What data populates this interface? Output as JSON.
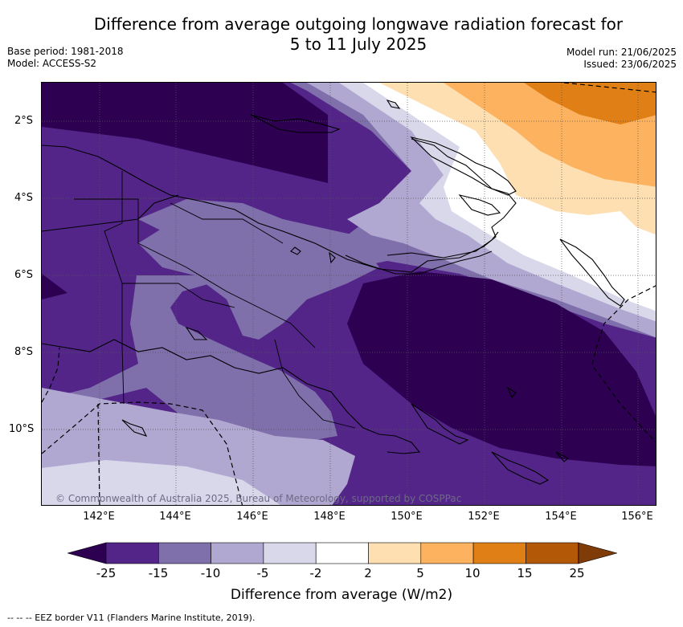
{
  "title_line1": "Difference from average outgoing longwave radiation forecast for",
  "title_line2": "5 to 11 July 2025",
  "base_period": "Base period: 1981-2018",
  "model": "Model: ACCESS-S2",
  "model_run": "Model run: 21/06/2025",
  "issued": "Issued: 23/06/2025",
  "copyright": "© Commonwealth of Australia 2025, Bureau of Meteorology, supported by COSPPac",
  "lat_labels": [
    "2°S",
    "4°S",
    "6°S",
    "8°S",
    "10°S"
  ],
  "lon_labels": [
    "142°E",
    "144°E",
    "146°E",
    "148°E",
    "150°E",
    "152°E",
    "154°E",
    "156°E"
  ],
  "legend": {
    "title": "Difference from average (W/m2)",
    "ticks": [
      "-25",
      "-15",
      "-10",
      "-5",
      "-2",
      "2",
      "5",
      "10",
      "15",
      "25"
    ],
    "colors": [
      "#2d0052",
      "#532589",
      "#7f6fab",
      "#b0a8d0",
      "#d8d8ea",
      "#ffffff",
      "#fedfb2",
      "#fdb25f",
      "#e07f15",
      "#b35806",
      "#7f3b08"
    ]
  },
  "eez_note": "-- -- -- EEZ border V11 (Flanders Marine Institute, 2019)."
}
